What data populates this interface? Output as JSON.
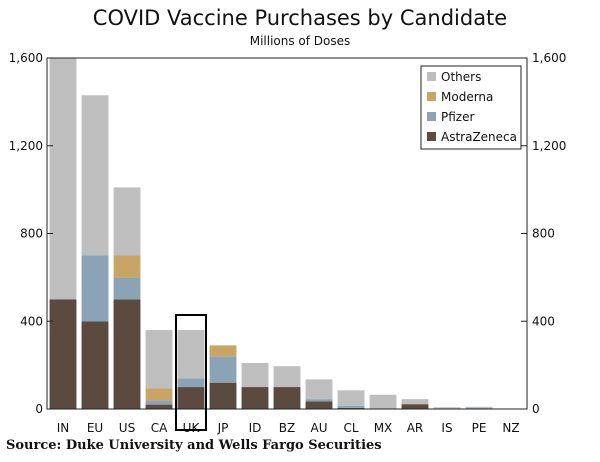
{
  "header": {
    "title": "COVID Vaccine Purchases by Candidate",
    "subtitle": "Millions of Doses"
  },
  "footer": {
    "source": "Source: Duke University and Wells Fargo Securities"
  },
  "chart_data": {
    "type": "bar",
    "stacked": true,
    "title": "COVID Vaccine Purchases by Candidate",
    "subtitle": "Millions of Doses",
    "categories": [
      "IN",
      "EU",
      "US",
      "CA",
      "UK",
      "JP",
      "ID",
      "BZ",
      "AU",
      "CL",
      "MX",
      "AR",
      "IS",
      "PE",
      "NZ"
    ],
    "highlighted_category": "UK",
    "ylim": [
      0,
      1600
    ],
    "yticks": [
      0,
      400,
      800,
      1200,
      1600
    ],
    "ytick_labels": [
      "0",
      "400",
      "800",
      "1,200",
      "1,600"
    ],
    "series": [
      {
        "name": "AstraZeneca",
        "color": "#5a4a3f",
        "values": [
          500,
          400,
          500,
          20,
          100,
          120,
          100,
          100,
          35,
          5,
          0,
          22,
          0,
          3,
          0
        ]
      },
      {
        "name": "Pfizer",
        "color": "#8ba3b4",
        "values": [
          0,
          300,
          100,
          20,
          40,
          120,
          0,
          0,
          10,
          10,
          0,
          0,
          0,
          3,
          0
        ]
      },
      {
        "name": "Moderna",
        "color": "#c9a565",
        "values": [
          0,
          0,
          100,
          55,
          0,
          50,
          0,
          0,
          0,
          0,
          0,
          0,
          0,
          0,
          0
        ]
      },
      {
        "name": "Others",
        "color": "#bebebe",
        "values": [
          1100,
          730,
          310,
          265,
          220,
          0,
          110,
          95,
          90,
          70,
          65,
          23,
          8,
          4,
          0
        ]
      }
    ],
    "legend_order": [
      "Others",
      "Moderna",
      "Pfizer",
      "AstraZeneca"
    ],
    "legend_position": "top-right",
    "grid": false
  }
}
